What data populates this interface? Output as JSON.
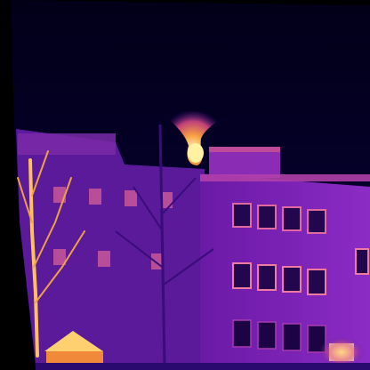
{
  "image": {
    "kind": "thermal-infrared-photo",
    "palette": "ironbow",
    "subject": "building-facade-at-night-with-bare-tree-and-rooftop-heat-plume",
    "colors": {
      "background": "#000000",
      "sky": "#05002e",
      "cold": "#2a0a6e",
      "cool": "#5a1aa0",
      "mid": "#9a2ad0",
      "warm": "#d04aa0",
      "hot": "#f08a3a",
      "hottest": "#fff2a0"
    }
  }
}
